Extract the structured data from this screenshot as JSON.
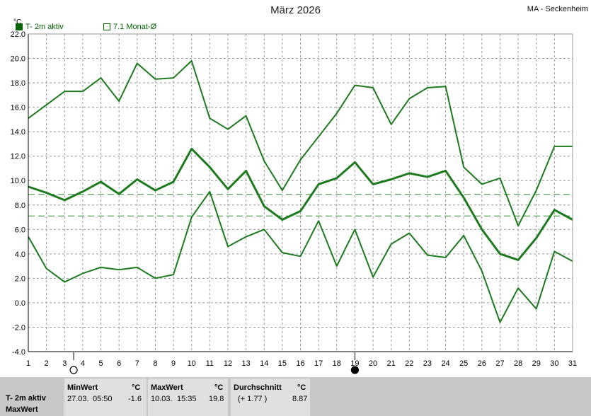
{
  "title": "März 2026",
  "station": "MA - Seckenheim",
  "unit_label": "°C",
  "legend": [
    {
      "label": "T- 2m aktiv",
      "style": "filled"
    },
    {
      "label": "7.1 Monat-Ø",
      "style": "open"
    }
  ],
  "colors": {
    "series": "#1e7a1e",
    "grid": "#999999",
    "dashed": "#2e8b2e"
  },
  "chart_data": {
    "type": "line",
    "x": [
      1,
      2,
      3,
      4,
      5,
      6,
      7,
      8,
      9,
      10,
      11,
      12,
      13,
      14,
      15,
      16,
      17,
      18,
      19,
      20,
      21,
      22,
      23,
      24,
      25,
      26,
      27,
      28,
      29,
      30,
      31
    ],
    "ylim": [
      -4,
      22
    ],
    "y_ticks": [
      "22.0",
      "20.0",
      "18.0",
      "16.0",
      "14.0",
      "12.0",
      "10.0",
      "8.0",
      "6.0",
      "4.0",
      "2.0",
      "0.0",
      "-2.0",
      "-4.0"
    ],
    "x_ticks": [
      "1",
      "2",
      "3",
      "4",
      "5",
      "6",
      "7",
      "8",
      "9",
      "10",
      "11",
      "12",
      "13",
      "14",
      "15",
      "16",
      "17",
      "18",
      "19",
      "20",
      "21",
      "22",
      "23",
      "24",
      "25",
      "26",
      "27",
      "28",
      "29",
      "30",
      "31"
    ],
    "grid": true,
    "series": [
      {
        "role": "max",
        "values": [
          15.1,
          16.2,
          17.3,
          17.3,
          18.4,
          16.5,
          19.6,
          18.3,
          18.4,
          19.8,
          15.1,
          14.2,
          15.3,
          11.6,
          9.2,
          11.7,
          13.6,
          15.5,
          17.8,
          17.6,
          14.6,
          16.7,
          17.6,
          17.7,
          11.1,
          9.7,
          10.2,
          6.3,
          9.2,
          12.8,
          12.8
        ]
      },
      {
        "role": "mean",
        "values": [
          9.5,
          9.0,
          8.4,
          9.1,
          9.9,
          8.9,
          10.1,
          9.2,
          9.9,
          12.6,
          11.1,
          9.3,
          10.8,
          7.9,
          6.8,
          7.5,
          9.7,
          10.2,
          11.5,
          9.7,
          10.1,
          10.6,
          10.3,
          10.8,
          8.6,
          6.0,
          4.0,
          3.5,
          5.3,
          7.6,
          6.8
        ]
      },
      {
        "role": "min",
        "values": [
          5.4,
          2.8,
          1.7,
          2.4,
          2.9,
          2.7,
          2.9,
          2.0,
          2.3,
          7.0,
          9.1,
          4.6,
          5.4,
          6.0,
          4.1,
          3.8,
          6.7,
          3.0,
          6.0,
          2.1,
          4.8,
          5.7,
          3.9,
          3.7,
          5.5,
          2.6,
          -1.6,
          1.2,
          -0.5,
          4.2,
          3.4
        ]
      }
    ],
    "reference_lines": [
      {
        "value": 8.87
      },
      {
        "value": 7.1
      }
    ],
    "moon_markers": [
      {
        "x": 3.5,
        "phase": "full"
      },
      {
        "x": 19,
        "phase": "new"
      }
    ]
  },
  "footer": {
    "row_label_1": "T- 2m aktiv",
    "row_label_2": "MaxWert",
    "min": {
      "header": "MinWert",
      "unit": "°C",
      "date": "27.03.",
      "time": "05:50",
      "value": "-1.6"
    },
    "max": {
      "header": "MaxWert",
      "unit": "°C",
      "date": "10.03.",
      "time": "15:35",
      "value": "19.8"
    },
    "avg": {
      "header": "Durchschnitt",
      "unit": "°C",
      "diff": "(+ 1.77 )",
      "value": "8.87"
    }
  }
}
